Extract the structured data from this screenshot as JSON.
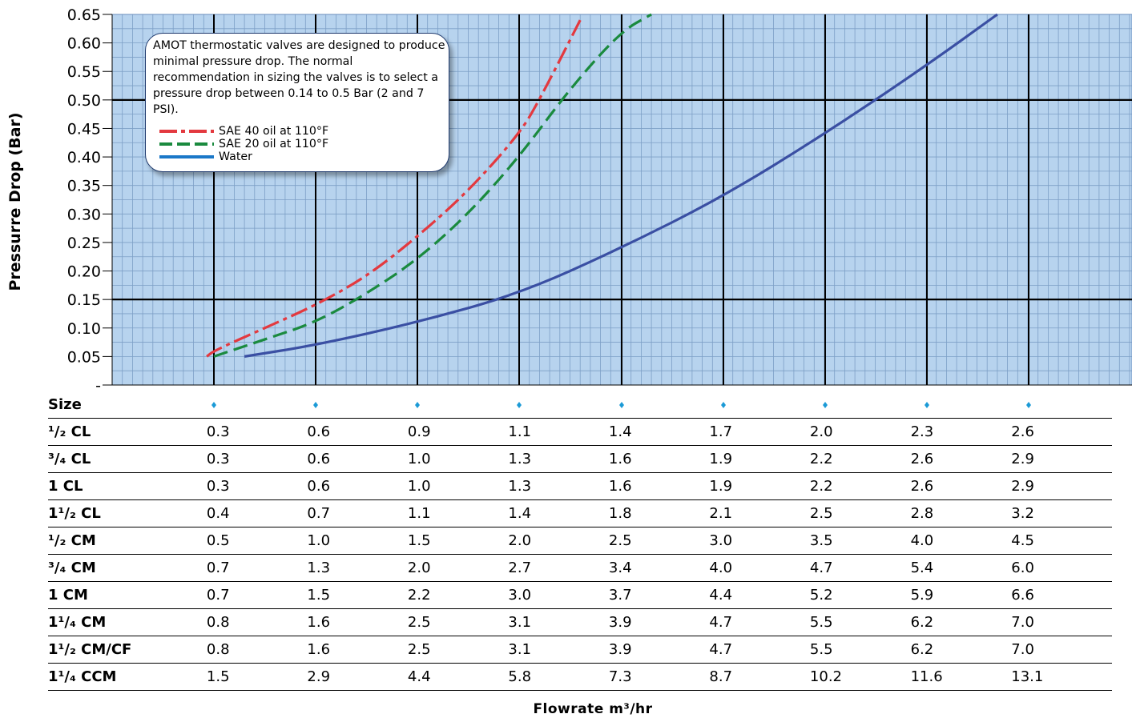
{
  "chart_data": {
    "type": "line",
    "ylabel": "Pressurre Drop (Bar)",
    "xlabel": "Flowrate m³/hr",
    "ylim": [
      0,
      0.65
    ],
    "yticks": [
      "-",
      "0.05",
      "0.10",
      "0.15",
      "0.20",
      "0.25",
      "0.30",
      "0.35",
      "0.40",
      "0.45",
      "0.50",
      "0.55",
      "0.60",
      "0.65"
    ],
    "grid": true,
    "reference_lines": [
      0.15,
      0.5
    ],
    "note": "AMOT thermostatic valves are designed to produce minimal pressure drop. The normal recommendation in sizing the valves is to select a pressure drop between 0.14 to 0.5 Bar (2 and 7 PSI).",
    "legend_position": "inside top-left",
    "series": [
      {
        "name": "SAE 40 oil at 110°F",
        "color": "#e3393f",
        "dash": "dash-dot",
        "x": [
          0.93,
          1.0,
          1.5,
          2.0,
          2.5,
          3.0,
          3.5,
          4.0,
          4.2,
          4.6
        ],
        "y": [
          0.05,
          0.06,
          0.1,
          0.14,
          0.19,
          0.26,
          0.34,
          0.44,
          0.5,
          0.64
        ]
      },
      {
        "name": "SAE 20 oil at 110°F",
        "color": "#1a8a3e",
        "dash": "dash",
        "x": [
          1.0,
          1.5,
          2.0,
          2.5,
          3.0,
          3.5,
          4.0,
          4.5,
          5.0,
          5.3
        ],
        "y": [
          0.05,
          0.08,
          0.11,
          0.16,
          0.22,
          0.3,
          0.4,
          0.52,
          0.62,
          0.65
        ]
      },
      {
        "name": "Water",
        "color": "#3a4fa3",
        "dash": "solid",
        "x": [
          1.3,
          2.0,
          3.0,
          4.0,
          5.0,
          6.0,
          7.0,
          8.0,
          8.7
        ],
        "y": [
          0.05,
          0.07,
          0.11,
          0.16,
          0.24,
          0.33,
          0.44,
          0.56,
          0.65
        ]
      }
    ],
    "table": {
      "header": "Size",
      "rows": [
        {
          "label": "¹/₂ CL",
          "values": [
            "0.3",
            "0.6",
            "0.9",
            "1.1",
            "1.4",
            "1.7",
            "2.0",
            "2.3",
            "2.6"
          ]
        },
        {
          "label": "³/₄ CL",
          "values": [
            "0.3",
            "0.6",
            "1.0",
            "1.3",
            "1.6",
            "1.9",
            "2.2",
            "2.6",
            "2.9"
          ]
        },
        {
          "label": "1 CL",
          "values": [
            "0.3",
            "0.6",
            "1.0",
            "1.3",
            "1.6",
            "1.9",
            "2.2",
            "2.6",
            "2.9"
          ]
        },
        {
          "label": "1¹/₂ CL",
          "values": [
            "0.4",
            "0.7",
            "1.1",
            "1.4",
            "1.8",
            "2.1",
            "2.5",
            "2.8",
            "3.2"
          ]
        },
        {
          "label": "¹/₂ CM",
          "values": [
            "0.5",
            "1.0",
            "1.5",
            "2.0",
            "2.5",
            "3.0",
            "3.5",
            "4.0",
            "4.5"
          ]
        },
        {
          "label": "³/₄ CM",
          "values": [
            "0.7",
            "1.3",
            "2.0",
            "2.7",
            "3.4",
            "4.0",
            "4.7",
            "5.4",
            "6.0"
          ]
        },
        {
          "label": "1 CM",
          "values": [
            "0.7",
            "1.5",
            "2.2",
            "3.0",
            "3.7",
            "4.4",
            "5.2",
            "5.9",
            "6.6"
          ]
        },
        {
          "label": "1¹/₄ CM",
          "values": [
            "0.8",
            "1.6",
            "2.5",
            "3.1",
            "3.9",
            "4.7",
            "5.5",
            "6.2",
            "7.0"
          ]
        },
        {
          "label": "1¹/₂ CM/CF",
          "values": [
            "0.8",
            "1.6",
            "2.5",
            "3.1",
            "3.9",
            "4.7",
            "5.5",
            "6.2",
            "7.0"
          ]
        },
        {
          "label": "1¹/₄ CCM",
          "values": [
            "1.5",
            "2.9",
            "4.4",
            "5.8",
            "7.3",
            "8.7",
            "10.2",
            "11.6",
            "13.1"
          ]
        }
      ]
    }
  },
  "colors": {
    "plot_background": "#b7d3ee",
    "minor_grid": "#7d9fc6",
    "major_grid": "#000000",
    "box_border": "#1f3a6e",
    "marker": "#1b9ad6"
  }
}
